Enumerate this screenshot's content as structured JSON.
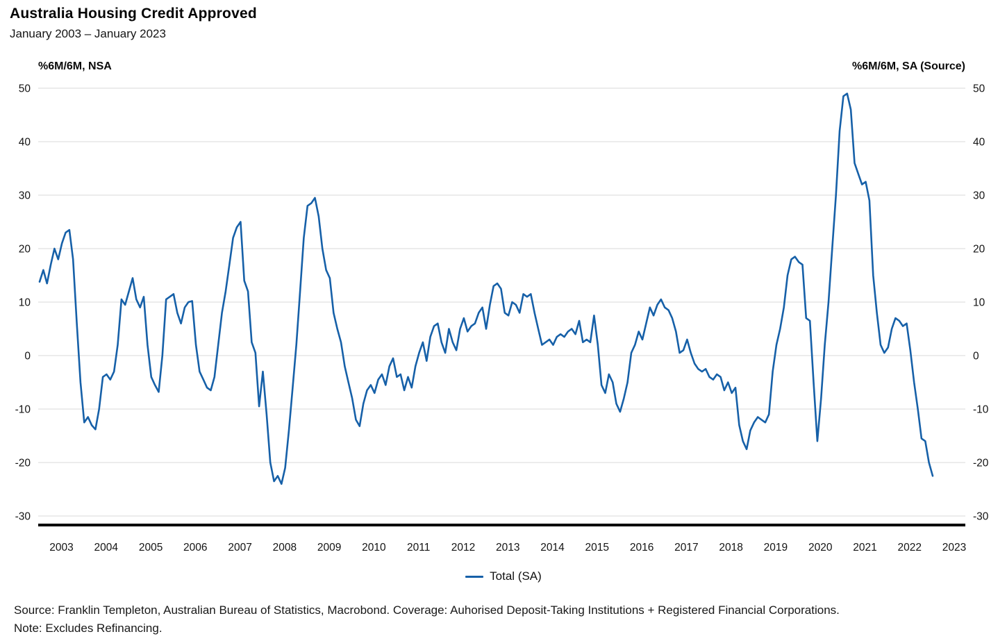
{
  "header": {
    "title": "Australia Housing Credit Approved",
    "subtitle": "January 2003 – January 2023"
  },
  "axes": {
    "left_unit_label": "%6M/6M, NSA",
    "right_unit_label": "%6M/6M, SA (Source)"
  },
  "footer": {
    "source_line": "Source: Franklin Templeton, Australian Bureau of Statistics, Macrobond. Coverage: Auhorised Deposit-Taking Institutions + Registered Financial Corporations.",
    "note_line": "Note: Excludes Refinancing."
  },
  "colors": {
    "line": "#1660A8",
    "grid": "#d8d8d8",
    "axis": "#000000",
    "text": "#141414"
  },
  "chart_data": {
    "type": "line",
    "title": "Australia Housing Credit Approved",
    "subtitle": "January 2003 – January 2023",
    "x_frequency": "monthly",
    "x_start": "2003-01",
    "x_end": "2023-01",
    "x_tick_labels": [
      "2003",
      "2004",
      "2005",
      "2006",
      "2007",
      "2008",
      "2009",
      "2010",
      "2011",
      "2012",
      "2013",
      "2014",
      "2015",
      "2016",
      "2017",
      "2018",
      "2019",
      "2020",
      "2021",
      "2022",
      "2023"
    ],
    "y_ticks": [
      50,
      40,
      30,
      20,
      10,
      0,
      -10,
      -20,
      -30
    ],
    "ylim": [
      -30,
      50
    ],
    "grid": "horizontal",
    "legend_position": "bottom-center",
    "ylabel_left": "%6M/6M, NSA",
    "ylabel_right": "%6M/6M, SA (Source)",
    "series": [
      {
        "name": "Total (SA)",
        "color": "#1660A8",
        "values": [
          13.8,
          16,
          13.5,
          17,
          20,
          18,
          21,
          23,
          23.5,
          18,
          6,
          -5,
          -12.5,
          -11.5,
          -13,
          -13.8,
          -10,
          -4,
          -3.5,
          -4.5,
          -3,
          2,
          10.5,
          9.5,
          12,
          14.5,
          10.5,
          9,
          11,
          2,
          -4,
          -5.5,
          -6.8,
          0,
          10.5,
          11,
          11.5,
          8,
          6,
          9,
          10,
          10.2,
          2,
          -3,
          -4.5,
          -6,
          -6.5,
          -4,
          2,
          8,
          12,
          17,
          22,
          24,
          25,
          14,
          12,
          2.5,
          0.5,
          -9.5,
          -3,
          -11,
          -20,
          -23.5,
          -22.5,
          -24,
          -21,
          -14,
          -6,
          2,
          12,
          22,
          28,
          28.5,
          29.5,
          26,
          20,
          16,
          14.5,
          8,
          5,
          2.5,
          -2,
          -5,
          -8,
          -12,
          -13.2,
          -9,
          -6.5,
          -5.5,
          -7,
          -4.5,
          -3.5,
          -5.5,
          -2,
          -0.5,
          -4,
          -3.5,
          -6.5,
          -4,
          -6,
          -2,
          0.5,
          2.5,
          -1,
          3.5,
          5.5,
          6,
          2.5,
          0.5,
          5,
          2.5,
          1,
          5,
          7,
          4.5,
          5.5,
          6,
          8,
          9,
          5,
          9.5,
          13,
          13.5,
          12.5,
          8,
          7.5,
          10,
          9.5,
          8,
          11.5,
          11,
          11.5,
          8,
          5,
          2,
          2.5,
          3,
          2,
          3.5,
          4,
          3.5,
          4.5,
          5,
          4,
          6.5,
          2.5,
          3,
          2.5,
          7.5,
          2,
          -5.5,
          -7,
          -3.5,
          -5,
          -9,
          -10.5,
          -8,
          -5,
          0.5,
          2,
          4.5,
          3,
          6,
          9,
          7.5,
          9.5,
          10.5,
          9,
          8.5,
          7,
          4.5,
          0.5,
          1,
          3,
          0.5,
          -1.5,
          -2.5,
          -3,
          -2.5,
          -4,
          -4.5,
          -3.5,
          -4,
          -6.5,
          -5,
          -7,
          -6,
          -13,
          -16,
          -17.5,
          -14,
          -12.5,
          -11.5,
          -12,
          -12.5,
          -11,
          -3,
          2,
          5,
          9,
          15,
          18,
          18.5,
          17.5,
          17,
          7,
          6.5,
          -5,
          -16,
          -8,
          2,
          10,
          20,
          30,
          42,
          48.5,
          49,
          46,
          36,
          34,
          32,
          32.5,
          29,
          15,
          8,
          2,
          0.5,
          1.5,
          5,
          7,
          6.5,
          5.5,
          6,
          1,
          -5,
          -10,
          -15.5,
          -16,
          -20,
          -22.5
        ]
      }
    ]
  }
}
